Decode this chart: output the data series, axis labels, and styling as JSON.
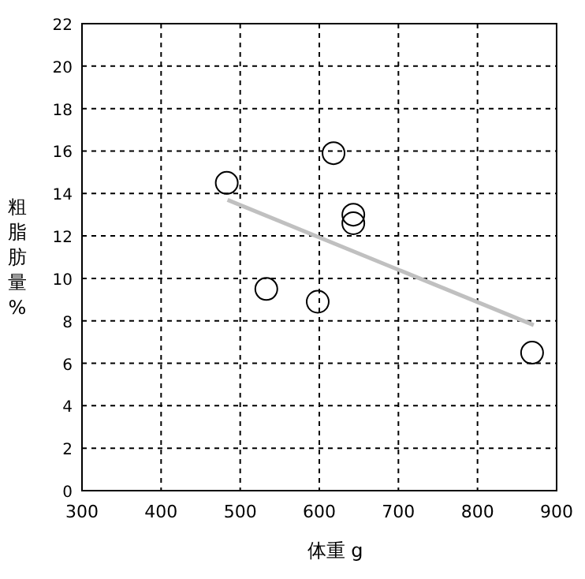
{
  "chart_data": {
    "type": "scatter",
    "xlabel": "体重 g",
    "ylabel": "粗脂肪量%",
    "xlim": [
      300,
      900
    ],
    "ylim": [
      0,
      22
    ],
    "xticks": [
      300,
      400,
      500,
      600,
      700,
      800,
      900
    ],
    "yticks": [
      0,
      2,
      4,
      6,
      8,
      10,
      12,
      14,
      16,
      18,
      20,
      22
    ],
    "grid": true,
    "marker": "circle",
    "series": [
      {
        "color": "#000000",
        "x": [
          483,
          618,
          643,
          643,
          533,
          598,
          869
        ],
        "values": [
          14.5,
          15.9,
          13.0,
          12.6,
          9.5,
          8.9,
          6.5
        ]
      },
      {
        "type": "line",
        "color": "#c0c0c0",
        "marker": "none",
        "x": [
          484,
          871
        ],
        "values": [
          13.7,
          7.8
        ]
      }
    ]
  }
}
